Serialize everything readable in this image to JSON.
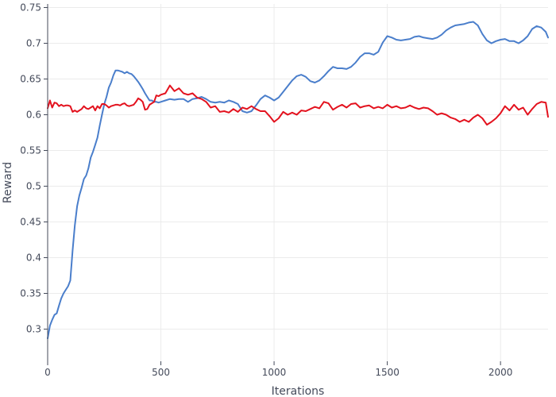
{
  "chart_data": {
    "type": "line",
    "title": "",
    "xlabel": "Iterations",
    "ylabel": "Reward",
    "xlim": [
      0,
      2210
    ],
    "ylim": [
      0.255,
      0.755
    ],
    "xticks": [
      0,
      500,
      1000,
      1500,
      2000
    ],
    "xtick_labels": [
      "0",
      "500",
      "1000",
      "1500",
      "2000"
    ],
    "yticks": [
      0.3,
      0.35,
      0.4,
      0.45,
      0.5,
      0.55,
      0.6,
      0.65,
      0.7,
      0.75
    ],
    "ytick_labels": [
      "0.3",
      "0.35",
      "0.4",
      "0.45",
      "0.5",
      "0.55",
      "0.6",
      "0.65",
      "0.7",
      "0.75"
    ],
    "grid": true,
    "legend": "none",
    "series": [
      {
        "color": "#4a7ecb",
        "x": [
          0,
          10,
          20,
          30,
          40,
          50,
          60,
          70,
          80,
          90,
          100,
          110,
          120,
          130,
          140,
          150,
          160,
          170,
          180,
          190,
          200,
          210,
          220,
          230,
          240,
          250,
          260,
          270,
          280,
          290,
          300,
          310,
          320,
          330,
          340,
          350,
          360,
          370,
          380,
          390,
          400,
          410,
          420,
          430,
          440,
          450,
          460,
          470,
          480,
          490,
          500,
          520,
          540,
          560,
          580,
          600,
          620,
          640,
          660,
          680,
          700,
          720,
          740,
          760,
          780,
          800,
          820,
          840,
          860,
          880,
          900,
          920,
          940,
          960,
          980,
          1000,
          1020,
          1040,
          1060,
          1080,
          1100,
          1120,
          1140,
          1160,
          1180,
          1200,
          1220,
          1240,
          1260,
          1280,
          1300,
          1320,
          1340,
          1360,
          1380,
          1400,
          1420,
          1440,
          1460,
          1480,
          1500,
          1520,
          1540,
          1560,
          1580,
          1600,
          1620,
          1640,
          1660,
          1680,
          1700,
          1720,
          1740,
          1760,
          1780,
          1800,
          1820,
          1840,
          1860,
          1880,
          1900,
          1920,
          1940,
          1960,
          1980,
          2000,
          2020,
          2040,
          2060,
          2080,
          2100,
          2120,
          2140,
          2160,
          2180,
          2200,
          2210
        ],
        "y": [
          0.287,
          0.305,
          0.313,
          0.32,
          0.322,
          0.333,
          0.343,
          0.35,
          0.355,
          0.36,
          0.368,
          0.41,
          0.445,
          0.472,
          0.487,
          0.498,
          0.51,
          0.515,
          0.525,
          0.54,
          0.548,
          0.558,
          0.568,
          0.585,
          0.6,
          0.615,
          0.625,
          0.638,
          0.645,
          0.655,
          0.662,
          0.662,
          0.661,
          0.66,
          0.658,
          0.66,
          0.658,
          0.657,
          0.654,
          0.65,
          0.646,
          0.641,
          0.636,
          0.63,
          0.625,
          0.62,
          0.62,
          0.618,
          0.618,
          0.617,
          0.618,
          0.62,
          0.622,
          0.621,
          0.622,
          0.622,
          0.618,
          0.622,
          0.623,
          0.625,
          0.622,
          0.618,
          0.617,
          0.618,
          0.617,
          0.62,
          0.618,
          0.615,
          0.605,
          0.603,
          0.605,
          0.613,
          0.622,
          0.627,
          0.624,
          0.62,
          0.624,
          0.632,
          0.64,
          0.648,
          0.654,
          0.656,
          0.653,
          0.647,
          0.645,
          0.648,
          0.654,
          0.661,
          0.667,
          0.665,
          0.665,
          0.664,
          0.667,
          0.673,
          0.681,
          0.686,
          0.686,
          0.684,
          0.688,
          0.701,
          0.71,
          0.708,
          0.705,
          0.704,
          0.705,
          0.706,
          0.709,
          0.71,
          0.708,
          0.707,
          0.706,
          0.708,
          0.712,
          0.718,
          0.722,
          0.725,
          0.726,
          0.727,
          0.729,
          0.73,
          0.725,
          0.713,
          0.704,
          0.7,
          0.703,
          0.705,
          0.706,
          0.703,
          0.703,
          0.7,
          0.704,
          0.71,
          0.72,
          0.724,
          0.722,
          0.716,
          0.708
        ]
      },
      {
        "color": "#e3121e",
        "x": [
          0,
          10,
          20,
          30,
          40,
          50,
          60,
          70,
          80,
          90,
          100,
          110,
          120,
          130,
          140,
          150,
          160,
          170,
          180,
          190,
          200,
          210,
          220,
          230,
          240,
          250,
          260,
          270,
          280,
          290,
          300,
          310,
          320,
          330,
          340,
          350,
          360,
          370,
          380,
          390,
          400,
          410,
          420,
          430,
          440,
          450,
          460,
          470,
          480,
          490,
          500,
          520,
          540,
          560,
          580,
          600,
          620,
          640,
          660,
          680,
          700,
          720,
          740,
          760,
          780,
          800,
          820,
          840,
          860,
          880,
          900,
          920,
          940,
          960,
          980,
          1000,
          1020,
          1040,
          1060,
          1080,
          1100,
          1120,
          1140,
          1160,
          1180,
          1200,
          1220,
          1240,
          1260,
          1280,
          1300,
          1320,
          1340,
          1360,
          1380,
          1400,
          1420,
          1440,
          1460,
          1480,
          1500,
          1520,
          1540,
          1560,
          1580,
          1600,
          1620,
          1640,
          1660,
          1680,
          1700,
          1720,
          1740,
          1760,
          1780,
          1800,
          1820,
          1840,
          1860,
          1880,
          1900,
          1920,
          1940,
          1960,
          1980,
          2000,
          2020,
          2040,
          2060,
          2080,
          2100,
          2120,
          2140,
          2160,
          2180,
          2200,
          2210
        ],
        "y": [
          0.609,
          0.62,
          0.61,
          0.617,
          0.616,
          0.612,
          0.614,
          0.612,
          0.613,
          0.613,
          0.612,
          0.604,
          0.606,
          0.604,
          0.606,
          0.608,
          0.612,
          0.609,
          0.608,
          0.61,
          0.612,
          0.606,
          0.612,
          0.609,
          0.615,
          0.615,
          0.613,
          0.61,
          0.612,
          0.613,
          0.614,
          0.614,
          0.613,
          0.615,
          0.616,
          0.613,
          0.612,
          0.613,
          0.614,
          0.618,
          0.623,
          0.621,
          0.618,
          0.607,
          0.608,
          0.614,
          0.616,
          0.618,
          0.627,
          0.626,
          0.628,
          0.63,
          0.641,
          0.633,
          0.637,
          0.63,
          0.628,
          0.63,
          0.624,
          0.622,
          0.618,
          0.61,
          0.612,
          0.604,
          0.605,
          0.603,
          0.608,
          0.604,
          0.61,
          0.608,
          0.612,
          0.608,
          0.605,
          0.605,
          0.598,
          0.59,
          0.595,
          0.604,
          0.6,
          0.603,
          0.6,
          0.606,
          0.605,
          0.608,
          0.611,
          0.609,
          0.618,
          0.616,
          0.607,
          0.611,
          0.614,
          0.61,
          0.615,
          0.616,
          0.61,
          0.612,
          0.613,
          0.609,
          0.611,
          0.609,
          0.614,
          0.61,
          0.612,
          0.609,
          0.61,
          0.613,
          0.61,
          0.608,
          0.61,
          0.609,
          0.605,
          0.6,
          0.602,
          0.6,
          0.596,
          0.594,
          0.59,
          0.593,
          0.59,
          0.596,
          0.6,
          0.595,
          0.586,
          0.59,
          0.595,
          0.602,
          0.612,
          0.606,
          0.614,
          0.607,
          0.61,
          0.6,
          0.608,
          0.615,
          0.618,
          0.617,
          0.597
        ]
      }
    ]
  }
}
